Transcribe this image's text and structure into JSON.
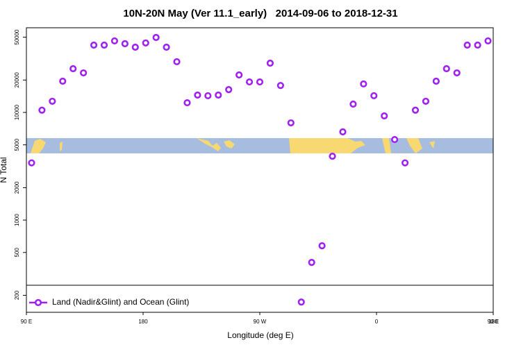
{
  "chart_data": {
    "type": "scatter",
    "title": "10N-20N May (Ver 11.1_early)   2014-09-06 to 2018-12-31",
    "x_label": "Longitude (deg E)",
    "y_label": "N Total",
    "log_y": true,
    "legend": "bottom",
    "xlim": [
      90,
      450
    ],
    "xticks": [
      {
        "value": 90,
        "label": "90 E"
      },
      {
        "value": 180,
        "label": "180"
      },
      {
        "value": 270,
        "label": "90 W"
      },
      {
        "value": 360,
        "label": "0"
      },
      {
        "value": 450,
        "label": "90 E"
      },
      {
        "value": 540,
        "label": "180"
      }
    ],
    "ylim": [
      139,
      61200
    ],
    "yticks": [
      200,
      500,
      1000,
      2000,
      5000,
      10000,
      20000,
      50000
    ],
    "x": [
      94,
      102,
      110,
      118,
      126,
      134,
      142,
      150,
      158,
      166,
      174,
      182,
      190,
      198,
      206,
      214,
      222,
      230,
      238,
      246,
      254,
      262,
      270,
      278,
      286,
      294,
      302,
      310,
      318,
      326,
      334,
      342,
      350,
      358,
      366,
      374,
      382,
      390,
      398,
      406,
      414,
      422,
      430,
      438,
      446
    ],
    "series": [
      {
        "name": "Land (Nadir&Glint) and Ocean (Glint)",
        "color": "#a020f0",
        "values": [
          3400,
          10500,
          12700,
          19500,
          25500,
          23300,
          42200,
          42200,
          46200,
          43500,
          40400,
          44200,
          49700,
          40400,
          29600,
          12300,
          14500,
          14300,
          14500,
          16300,
          22300,
          19200,
          19200,
          28700,
          17800,
          8000,
          173,
          404,
          577,
          3920,
          6600,
          11950,
          18400,
          14300,
          9290,
          5600,
          3400,
          10500,
          12700,
          19500,
          25500,
          23300,
          42200,
          42200,
          46200
        ]
      }
    ]
  }
}
